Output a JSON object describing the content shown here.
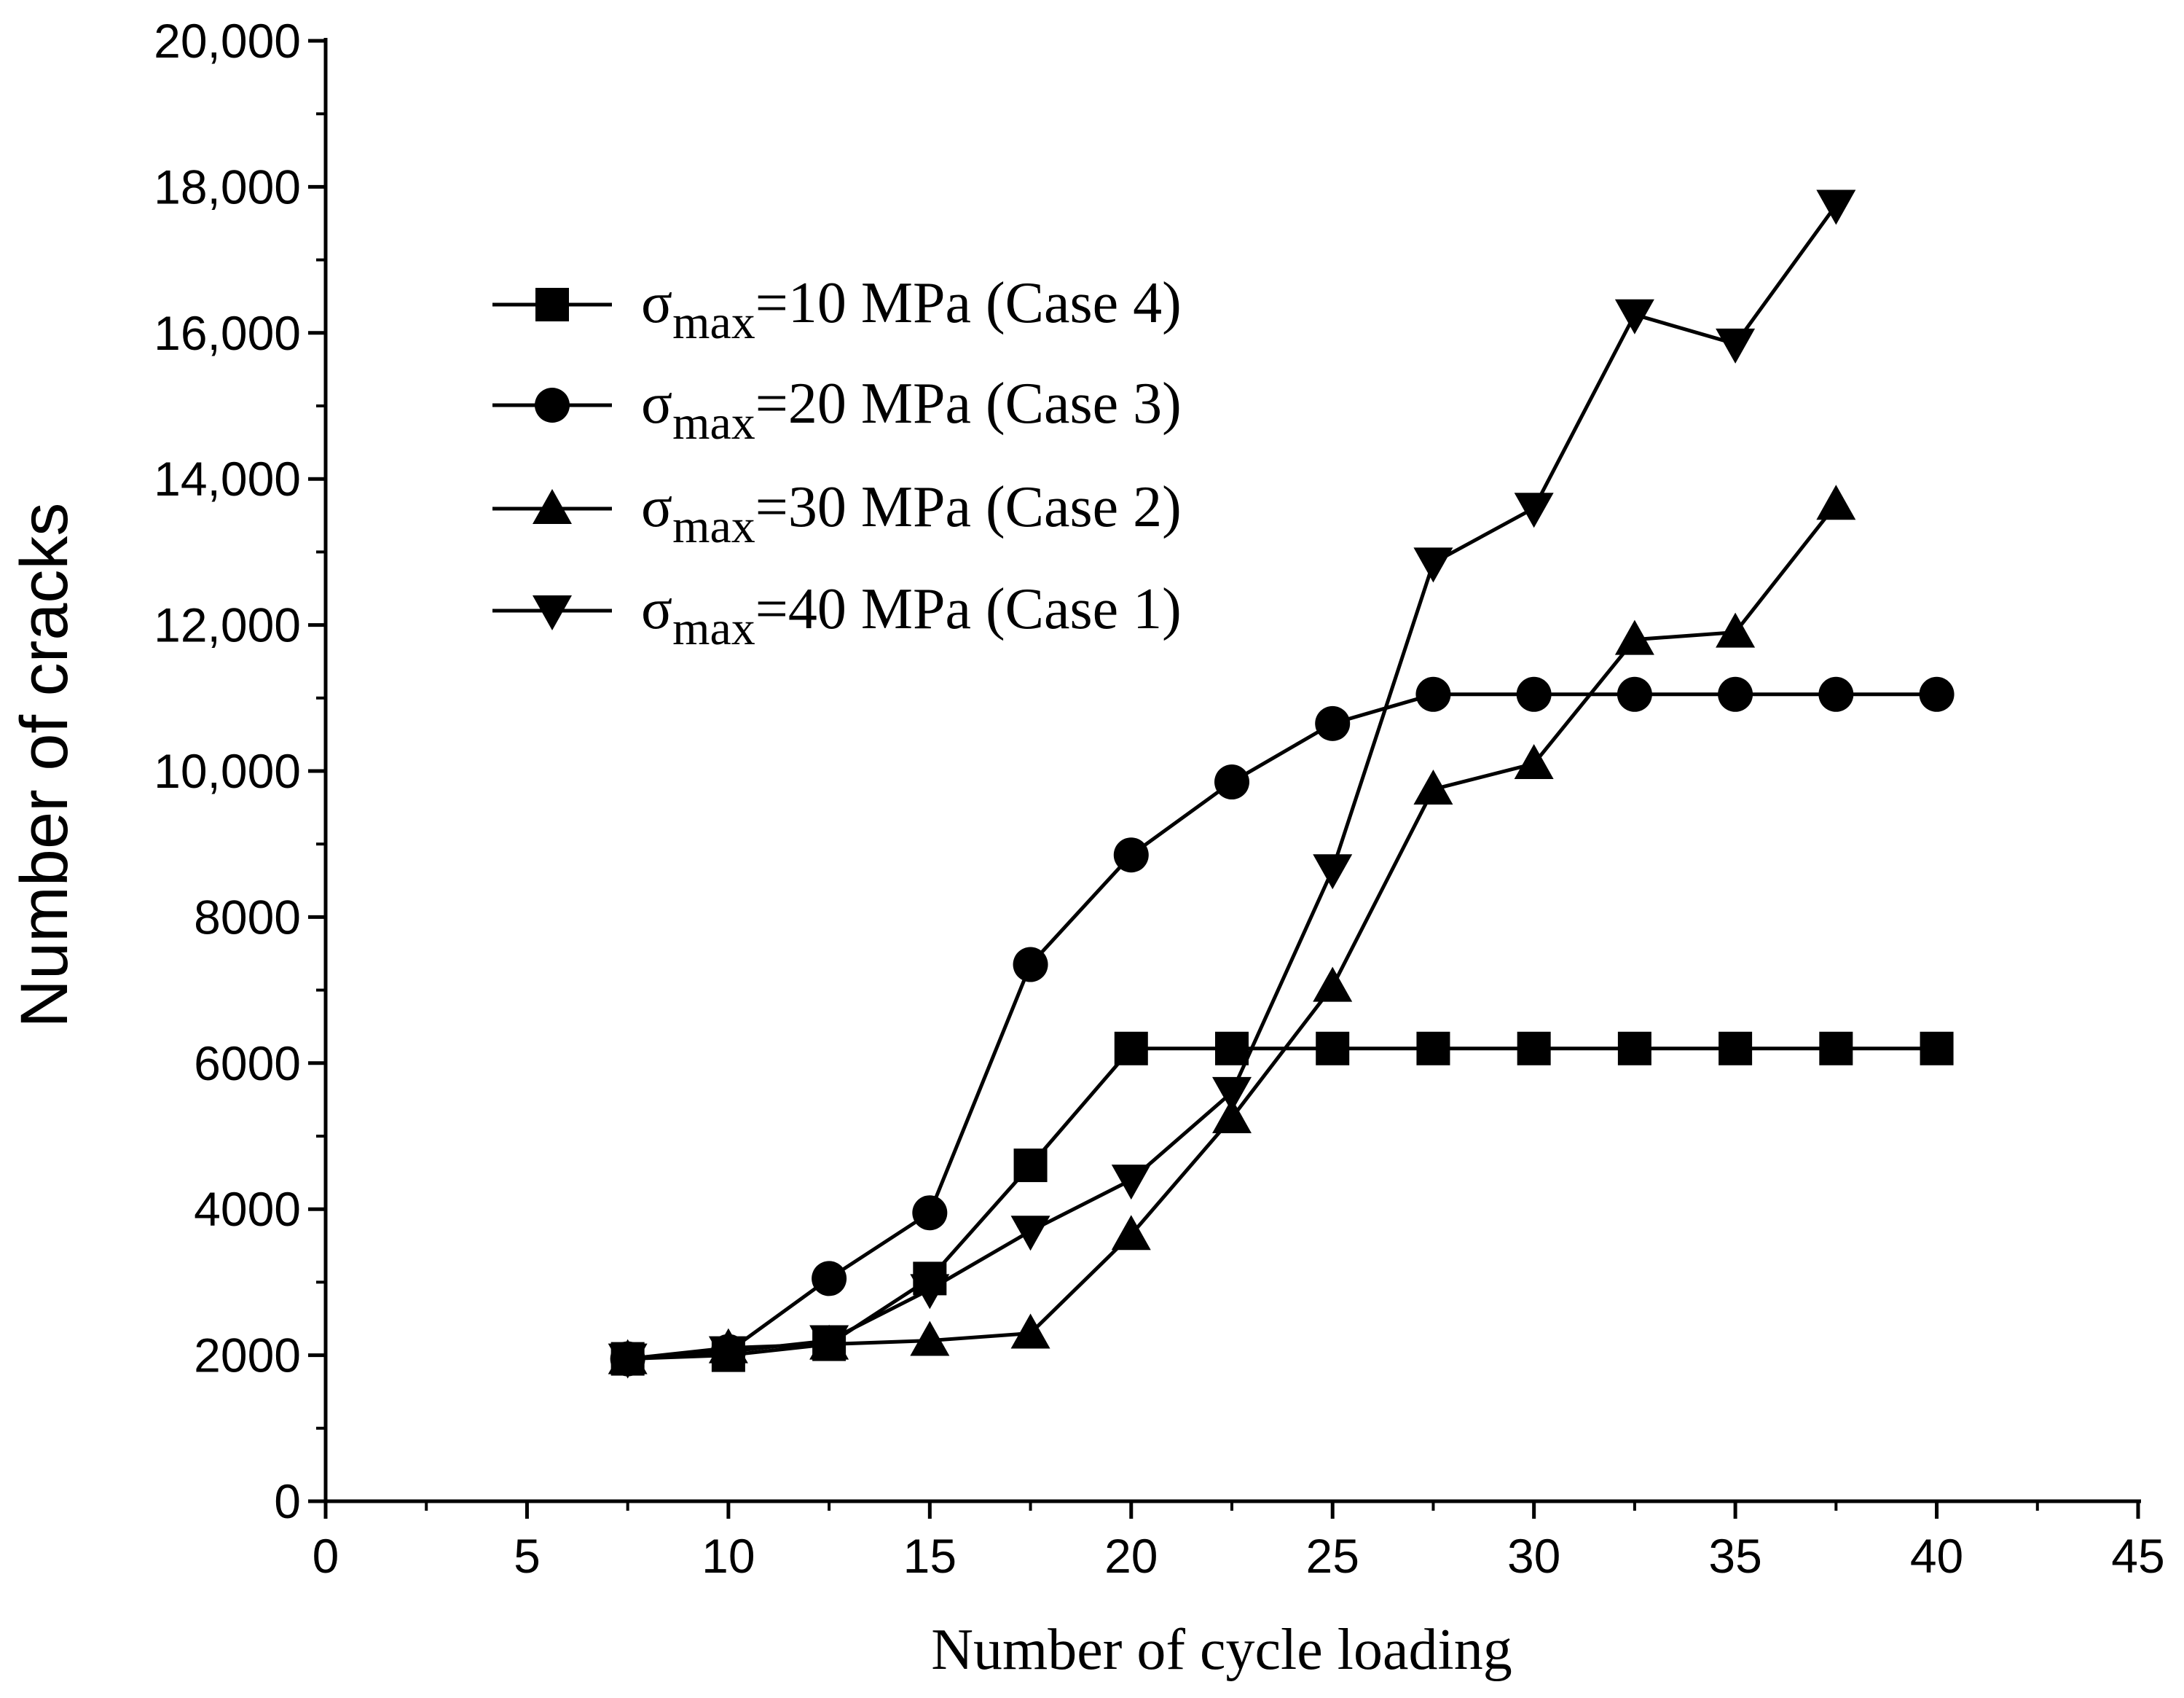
{
  "chart_data": {
    "type": "line",
    "title": "",
    "xlabel": "Number of cycle loading",
    "ylabel": "Number of cracks",
    "xlim": [
      0,
      45
    ],
    "ylim": [
      0,
      20000
    ],
    "x_ticks": [
      0,
      5,
      10,
      15,
      20,
      25,
      30,
      35,
      40,
      45
    ],
    "x_tick_labels": [
      "0",
      "5",
      "10",
      "15",
      "20",
      "25",
      "30",
      "35",
      "40",
      "45"
    ],
    "y_ticks": [
      0,
      2000,
      4000,
      6000,
      8000,
      10000,
      12000,
      14000,
      16000,
      18000,
      20000
    ],
    "y_tick_labels": [
      "0",
      "2000",
      "4000",
      "6000",
      "8000",
      "10,000",
      "12,000",
      "14,000",
      "16,000",
      "18,000",
      "20,000"
    ],
    "grid": false,
    "legend_position": "top-left",
    "series": [
      {
        "name": "σmax=10 MPa (Case 4)",
        "label_symbol": "σ",
        "label_sub": "max",
        "label_rest": "=10 MPa (Case 4)",
        "marker": "square",
        "x": [
          7.5,
          10,
          12.5,
          15,
          17.5,
          20,
          22.5,
          25,
          27.5,
          30,
          32.5,
          35,
          37.5,
          40
        ],
        "y": [
          1950,
          2000,
          2150,
          3050,
          4600,
          6200,
          6200,
          6200,
          6200,
          6200,
          6200,
          6200,
          6200,
          6200
        ]
      },
      {
        "name": "σmax=20 MPa (Case 3)",
        "label_symbol": "σ",
        "label_sub": "max",
        "label_rest": "=20 MPa (Case 3)",
        "marker": "circle",
        "x": [
          7.5,
          10,
          12.5,
          15,
          17.5,
          20,
          22.5,
          25,
          27.5,
          30,
          32.5,
          35,
          37.5,
          40
        ],
        "y": [
          1950,
          2050,
          3050,
          3950,
          7350,
          8850,
          9850,
          10650,
          11050,
          11050,
          11050,
          11050,
          11050,
          11050
        ]
      },
      {
        "name": "σmax=30 MPa (Case 2)",
        "label_symbol": "σ",
        "label_sub": "max",
        "label_rest": "=30 MPa (Case 2)",
        "marker": "triangle-up",
        "x": [
          7.5,
          10,
          12.5,
          15,
          17.5,
          20,
          22.5,
          25,
          27.5,
          30,
          32.5,
          35,
          37.5
        ],
        "y": [
          1950,
          2100,
          2150,
          2200,
          2300,
          3650,
          5250,
          7050,
          9750,
          10100,
          11800,
          11900,
          13650
        ]
      },
      {
        "name": "σmax=40 MPa (Case 1)",
        "label_symbol": "σ",
        "label_sub": "max",
        "label_rest": "=40 MPa (Case 1)",
        "marker": "triangle-down",
        "x": [
          7.5,
          10,
          12.5,
          15,
          17.5,
          20,
          22.5,
          25,
          27.5,
          30,
          32.5,
          35,
          37.5
        ],
        "y": [
          1950,
          2050,
          2200,
          2900,
          3700,
          4400,
          5600,
          8650,
          12850,
          13600,
          16250,
          15850,
          17750
        ]
      }
    ]
  }
}
